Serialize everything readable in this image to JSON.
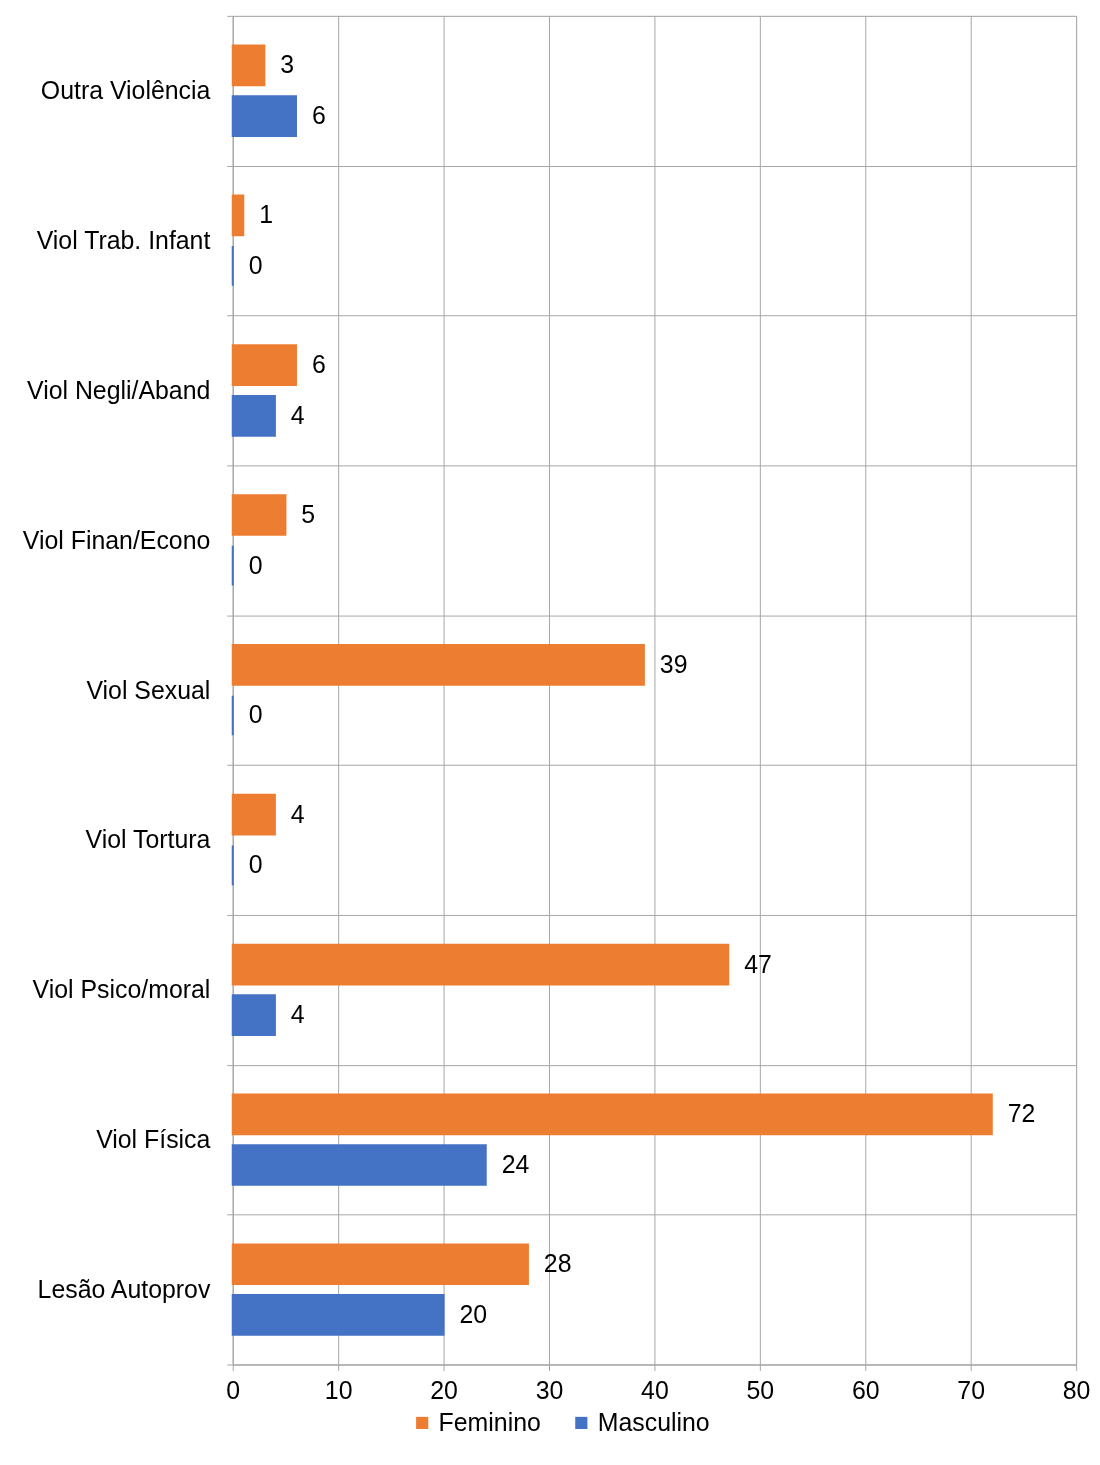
{
  "chart_data": {
    "type": "bar",
    "orientation": "horizontal",
    "categories": [
      "Outra Violência",
      "Viol Trab. Infant",
      "Viol Negli/Aband",
      "Viol Finan/Econo",
      "Viol Sexual",
      "Viol Tortura",
      "Viol Psico/moral",
      "Viol Física",
      "Lesão Autoprov"
    ],
    "series": [
      {
        "name": "Feminino",
        "color": "#ed7d31",
        "values": [
          3,
          1,
          6,
          5,
          39,
          4,
          47,
          72,
          28
        ]
      },
      {
        "name": "Masculino",
        "color": "#4472c4",
        "values": [
          6,
          0,
          4,
          0,
          0,
          0,
          4,
          24,
          20
        ]
      }
    ],
    "xlim": [
      0,
      80
    ],
    "xticks": [
      0,
      10,
      20,
      30,
      40,
      50,
      60,
      70,
      80
    ],
    "grid": true,
    "legend": "bottom",
    "data_labels": true
  }
}
